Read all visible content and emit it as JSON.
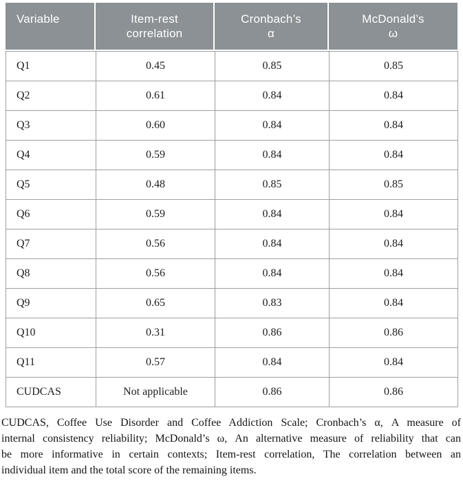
{
  "table": {
    "headers": [
      {
        "line1": "Variable",
        "line2": ""
      },
      {
        "line1": "Item-rest",
        "line2": "correlation"
      },
      {
        "line1": "Cronbach’s",
        "line2": "α"
      },
      {
        "line1": "McDonald’s",
        "line2": "ω"
      }
    ],
    "rows": [
      [
        "Q1",
        "0.45",
        "0.85",
        "0.85"
      ],
      [
        "Q2",
        "0.61",
        "0.84",
        "0.84"
      ],
      [
        "Q3",
        "0.60",
        "0.84",
        "0.84"
      ],
      [
        "Q4",
        "0.59",
        "0.84",
        "0.84"
      ],
      [
        "Q5",
        "0.48",
        "0.85",
        "0.85"
      ],
      [
        "Q6",
        "0.59",
        "0.84",
        "0.84"
      ],
      [
        "Q7",
        "0.56",
        "0.84",
        "0.84"
      ],
      [
        "Q8",
        "0.56",
        "0.84",
        "0.84"
      ],
      [
        "Q9",
        "0.65",
        "0.83",
        "0.84"
      ],
      [
        "Q10",
        "0.31",
        "0.86",
        "0.86"
      ],
      [
        "Q11",
        "0.57",
        "0.84",
        "0.84"
      ],
      [
        "CUDCAS",
        "Not applicable",
        "0.86",
        "0.86"
      ]
    ]
  },
  "footnote_lines": [
    "CUDCAS, Coffee Use Disorder and Coffee Addiction Scale; Cronbach’s α, A measure of",
    "internal consistency reliability; McDonald’s ω, An alternative measure of reliability that can",
    "be more informative in certain contexts; Item-rest correlation, The correlation between an",
    "individual item and the total score of the remaining items."
  ],
  "colors": {
    "header_bg": "#8b9194",
    "header_text": "#ffffff",
    "border": "#9e9e9e"
  }
}
